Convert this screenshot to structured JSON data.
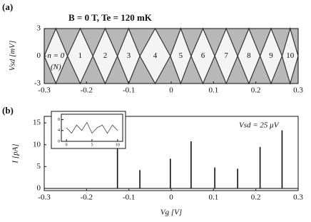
{
  "chart_data": [
    {
      "type": "diamond",
      "panel": "(a)",
      "title": "B = 0 T, Te = 120 mK",
      "x": [
        -0.245,
        -0.185,
        -0.127,
        -0.074,
        -0.002,
        0.047,
        0.103,
        0.157,
        0.21,
        0.262
      ],
      "charge_labels": [
        "n = 0",
        "1",
        "2",
        "3",
        "4",
        "5",
        "6",
        "7",
        "8",
        "9",
        "10"
      ],
      "note": "(N)",
      "y_label": "Vsd [mV]",
      "xlim": [
        -0.3,
        0.3
      ],
      "xticks": [
        -0.3,
        -0.2,
        -0.1,
        0,
        0.1,
        0.2,
        0.3
      ],
      "ylim": [
        -3,
        3
      ],
      "yticks": [
        -3,
        0,
        3
      ],
      "colors": {
        "background": "#b8b8b8",
        "diamond": "#f4f4f4",
        "edge": "#333333"
      }
    },
    {
      "type": "spike",
      "panel": "(b)",
      "annotation": "Vsd = 25 μV",
      "x": [
        -0.127,
        -0.074,
        -0.002,
        0.047,
        0.103,
        0.157,
        0.21,
        0.262
      ],
      "values": [
        9.3,
        4.2,
        6.8,
        10.8,
        4.8,
        4.5,
        9.5,
        13.3
      ],
      "color": "#111111",
      "x_label": "Vg [V]",
      "y_label": "I [pA]",
      "xlim": [
        -0.3,
        0.3
      ],
      "xticks": [
        -0.3,
        -0.2,
        -0.1,
        0,
        0.1,
        0.2,
        0.3
      ],
      "ylim": [
        -0.5,
        16.5
      ],
      "yticks": [
        0,
        5,
        10,
        15
      ]
    },
    {
      "type": "line",
      "x": [
        0,
        1,
        2,
        3,
        4,
        5,
        6,
        7,
        8,
        9,
        10
      ],
      "values": [
        5,
        3,
        6,
        4,
        7,
        3,
        5,
        6,
        3,
        6,
        4
      ],
      "color": "#444444",
      "xlim": [
        -1,
        11
      ],
      "xticks": [
        0,
        5,
        10
      ],
      "ylim": [
        0,
        10
      ],
      "yticks": [
        0,
        4,
        8
      ]
    }
  ]
}
